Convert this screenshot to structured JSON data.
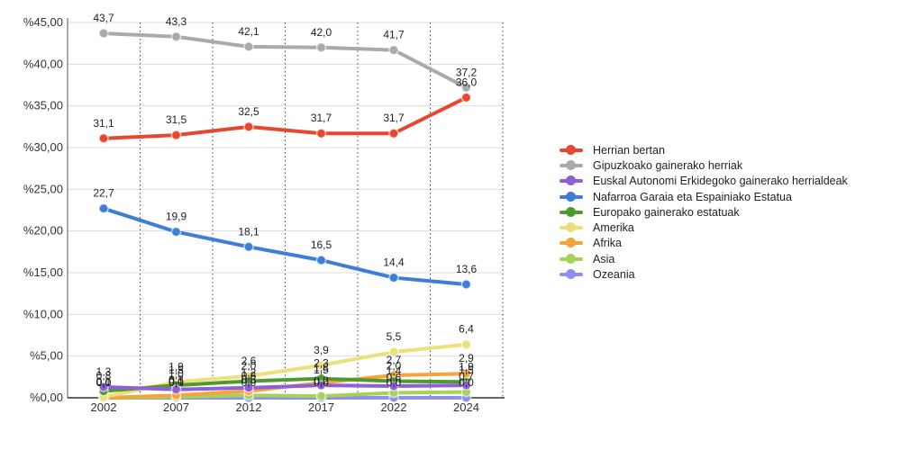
{
  "chart_data": {
    "type": "line",
    "categories": [
      "2002",
      "2007",
      "2012",
      "2017",
      "2022",
      "2024"
    ],
    "ylim": [
      0,
      45
    ],
    "yticks": [
      "%0,00",
      "%5,00",
      "%10,00",
      "%15,00",
      "%20,00",
      "%25,00",
      "%30,00",
      "%35,00",
      "%40,00",
      "%45,00"
    ],
    "series": [
      {
        "name": "Herrian bertan",
        "color": "#e8472f",
        "values": [
          31.1,
          31.5,
          32.5,
          31.7,
          31.7,
          36.0
        ],
        "labels": [
          "31,1",
          "31,5",
          "32,5",
          "31,7",
          "31,7",
          "36,0"
        ]
      },
      {
        "name": "Gipuzkoako gainerako herriak",
        "color": "#aaaaaa",
        "values": [
          43.7,
          43.3,
          42.1,
          42.0,
          41.7,
          37.2
        ],
        "labels": [
          "43,7",
          "43,3",
          "42,1",
          "42,0",
          "41,7",
          "37,2"
        ]
      },
      {
        "name": "Euskal Autonomi Erkidegoko gainerako herrialdeak",
        "color": "#8e5fd6",
        "values": [
          1.3,
          1.0,
          1.2,
          1.5,
          1.4,
          1.5
        ],
        "labels": [
          "1,3",
          "1,0",
          "1,2",
          "1,5",
          "1,4",
          "1,5"
        ]
      },
      {
        "name": "Nafarroa Garaia eta Espainiako Estatua",
        "color": "#3f7ed8",
        "values": [
          22.7,
          19.9,
          18.1,
          16.5,
          14.4,
          13.6
        ],
        "labels": [
          "22,7",
          "19,9",
          "18,1",
          "16,5",
          "14,4",
          "13,6"
        ]
      },
      {
        "name": "Europako gainerako estatuak",
        "color": "#4e9a2f",
        "values": [
          0.8,
          1.5,
          2.0,
          2.3,
          2.0,
          1.9
        ],
        "labels": [
          "0,8",
          "1,5",
          "2,0",
          "2,3",
          "2,0",
          "1,9"
        ]
      },
      {
        "name": "Amerika",
        "color": "#ece07a",
        "values": [
          0.1,
          1.9,
          2.6,
          3.9,
          5.5,
          6.4
        ],
        "labels": [
          "0,1",
          "1,9",
          "2,6",
          "3,9",
          "5,5",
          "6,4"
        ]
      },
      {
        "name": "Afrika",
        "color": "#f3a43a",
        "values": [
          0.0,
          0.3,
          0.8,
          1.8,
          2.7,
          2.9
        ],
        "labels": [
          "0,0",
          "0,3",
          "0,8",
          "1,8",
          "2,7",
          "2,9"
        ]
      },
      {
        "name": "Asia",
        "color": "#a6d25b",
        "values": [
          0.0,
          0.1,
          0.3,
          0.2,
          0.6,
          0.7
        ],
        "labels": [
          "0,0",
          "0,1",
          "0,3",
          "0,2",
          "0,6",
          "0,7"
        ]
      },
      {
        "name": "Ozeania",
        "color": "#8f8ff0",
        "values": [
          0.0,
          0.0,
          0.0,
          0.0,
          0.0,
          0.0
        ],
        "labels": [
          "0,0",
          "0,0",
          "0,0",
          "0,0",
          "0,0",
          "0,0"
        ]
      }
    ]
  }
}
